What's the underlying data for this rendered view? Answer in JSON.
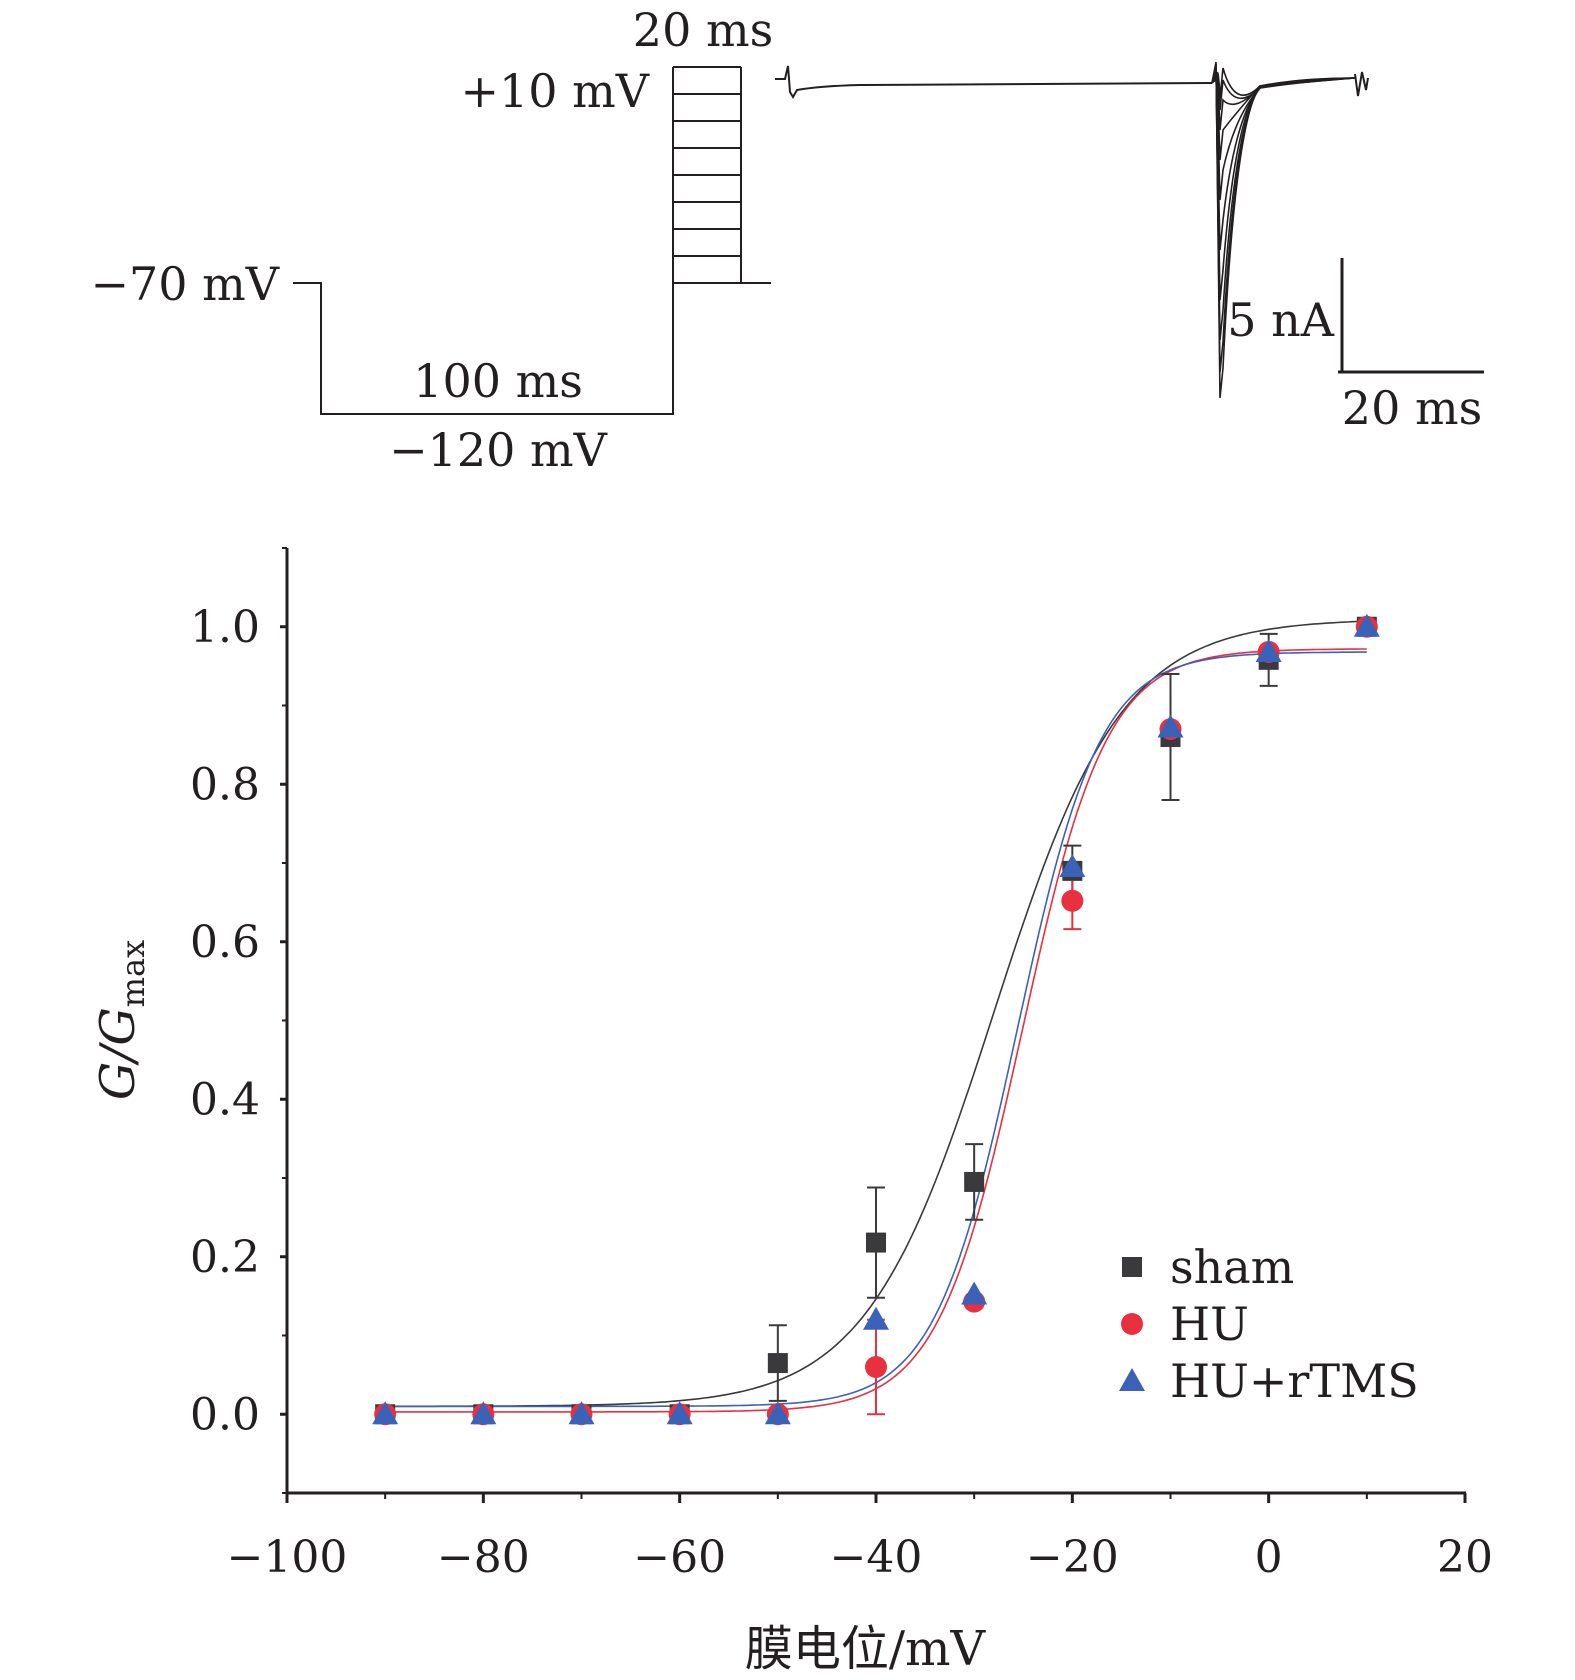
{
  "protocol": {
    "step_duration": "20 ms",
    "step_top": "+10 mV",
    "holding": "−70 mV",
    "prepulse_duration": "100 ms",
    "prepulse_potential": "−120 mV"
  },
  "trace": {
    "scale_current": "5 nA",
    "scale_time": "20 ms"
  },
  "chart_data": {
    "type": "scatter",
    "xlabel": "膜电位/mV",
    "ylabel": "G/G",
    "ylabel_sub": "max",
    "xlim": [
      -100,
      20
    ],
    "ylim": [
      -0.1,
      1.1
    ],
    "xticks": [
      -100,
      -80,
      -60,
      -40,
      -20,
      0,
      20
    ],
    "xtick_labels": [
      "−100",
      "−80",
      "−60",
      "−40",
      "−20",
      "0",
      "20"
    ],
    "yticks": [
      0.0,
      0.2,
      0.4,
      0.6,
      0.8,
      1.0
    ],
    "ytick_labels": [
      "0.0",
      "0.2",
      "0.4",
      "0.6",
      "0.8",
      "1.0"
    ],
    "legend_position": "bottom-right",
    "x": [
      -90,
      -80,
      -70,
      -60,
      -50,
      -40,
      -30,
      -20,
      -10,
      0,
      10
    ],
    "series": [
      {
        "name": "sham",
        "marker": "square",
        "color": "#3a3a3c",
        "values": [
          0.0,
          0.0,
          0.0,
          0.0,
          0.065,
          0.218,
          0.295,
          0.69,
          0.86,
          0.958,
          1.0
        ],
        "errors": [
          0,
          0,
          0,
          0,
          0.048,
          0.07,
          0.048,
          0.032,
          0.08,
          0.033,
          0
        ],
        "fit": {
          "bottom": 0.01,
          "top": 1.01,
          "v_half": -28.0,
          "slope": 6.5
        }
      },
      {
        "name": "HU",
        "marker": "circle",
        "color": "#e8303f",
        "values": [
          0.0,
          0.0,
          0.0,
          0.0,
          0.0,
          0.06,
          0.143,
          0.652,
          0.87,
          0.968,
          1.0
        ],
        "errors": [
          0,
          0,
          0,
          0,
          0,
          0.06,
          0,
          0.036,
          0,
          0,
          0
        ],
        "fit": {
          "bottom": 0.003,
          "top": 0.972,
          "v_half": -25.1,
          "slope": 4.3
        }
      },
      {
        "name": "HU+rTMS",
        "marker": "triangle",
        "color": "#3a62b8",
        "values": [
          0.0,
          0.0,
          0.0,
          0.0,
          0.0,
          0.12,
          0.152,
          0.695,
          0.872,
          0.968,
          1.0
        ],
        "errors": [
          0,
          0,
          0,
          0,
          0,
          0,
          0,
          0,
          0,
          0,
          0
        ],
        "fit": {
          "bottom": 0.01,
          "top": 0.968,
          "v_half": -25.6,
          "slope": 4.2
        }
      }
    ]
  }
}
